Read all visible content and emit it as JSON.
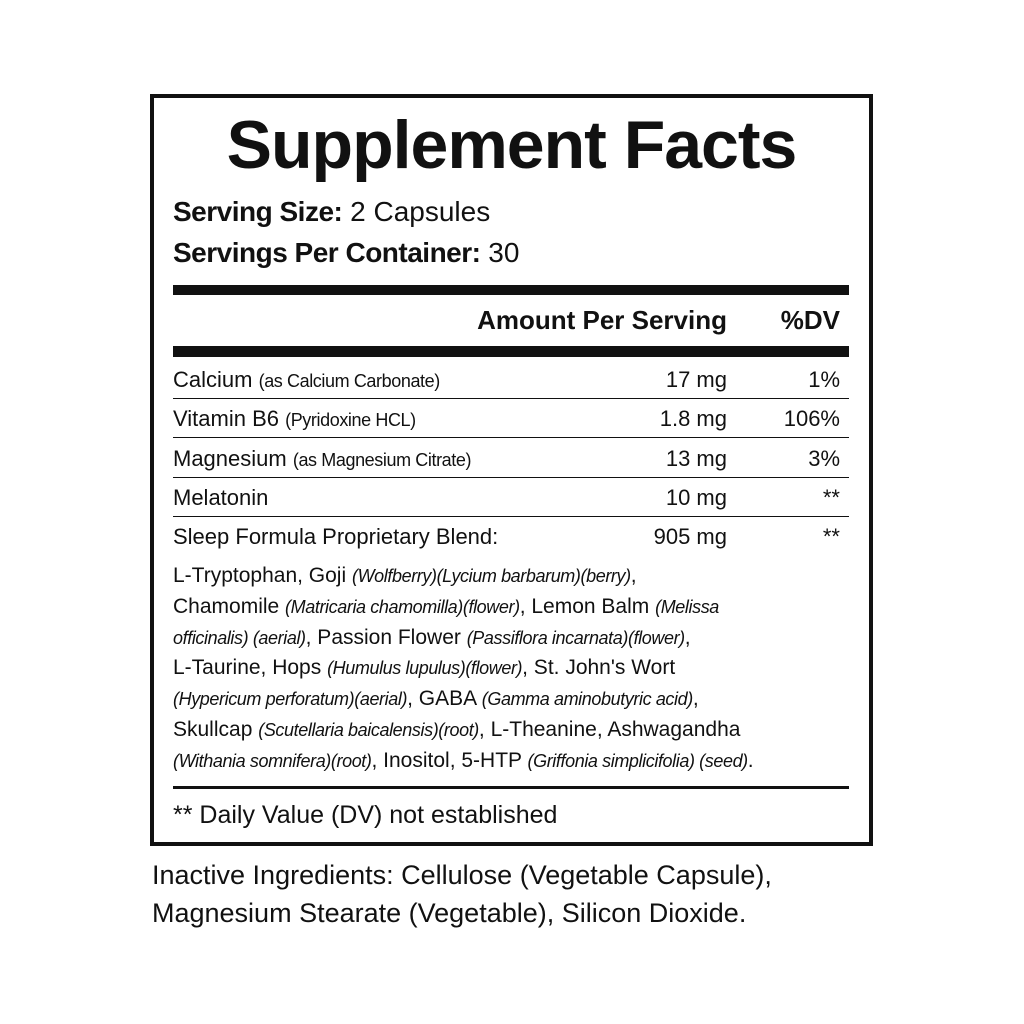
{
  "title": "Supplement Facts",
  "serving_size": {
    "label": "Serving Size:",
    "value": "2 Capsules"
  },
  "servings_per_container": {
    "label": "Servings Per Container:",
    "value": "30"
  },
  "header": {
    "amount": "Amount Per Serving",
    "dv": "%DV"
  },
  "rows": [
    {
      "name": "Calcium",
      "note": "(as Calcium Carbonate)",
      "amount": "17 mg",
      "dv": "1%"
    },
    {
      "name": "Vitamin B6",
      "note": "(Pyridoxine HCL)",
      "amount": "1.8 mg",
      "dv": "106%"
    },
    {
      "name": "Magnesium",
      "note": "(as Magnesium Citrate)",
      "amount": "13 mg",
      "dv": "3%"
    },
    {
      "name": "Melatonin",
      "amount": "10 mg",
      "dv": "**"
    }
  ],
  "blend": {
    "name": "Sleep Formula Proprietary Blend:",
    "amount": "905 mg",
    "dv": "**",
    "lines": [
      [
        {
          "text": "L-Tryptophan, Goji ",
          "italic": false
        },
        {
          "text": "(Wolfberry)(Lycium barbarum)(berry)",
          "italic": true
        },
        {
          "text": ",",
          "italic": false
        }
      ],
      [
        {
          "text": "Chamomile ",
          "italic": false
        },
        {
          "text": "(Matricaria chamomilla)(flower)",
          "italic": true
        },
        {
          "text": ", Lemon Balm ",
          "italic": false
        },
        {
          "text": "(Melissa",
          "italic": true
        }
      ],
      [
        {
          "text": "officinalis) (aerial)",
          "italic": true
        },
        {
          "text": ", Passion Flower ",
          "italic": false
        },
        {
          "text": "(Passiflora incarnata)(flower)",
          "italic": true
        },
        {
          "text": ",",
          "italic": false
        }
      ],
      [
        {
          "text": "L-Taurine, Hops ",
          "italic": false
        },
        {
          "text": "(Humulus lupulus)(flower)",
          "italic": true
        },
        {
          "text": ", St. John's Wort",
          "italic": false
        }
      ],
      [
        {
          "text": "(Hypericum perforatum)(aerial)",
          "italic": true
        },
        {
          "text": ", GABA ",
          "italic": false
        },
        {
          "text": "(Gamma aminobutyric acid)",
          "italic": true
        },
        {
          "text": ",",
          "italic": false
        }
      ],
      [
        {
          "text": "Skullcap ",
          "italic": false
        },
        {
          "text": "(Scutellaria baicalensis)(root)",
          "italic": true
        },
        {
          "text": ", L-Theanine, Ashwagandha",
          "italic": false
        }
      ],
      [
        {
          "text": "(Withania somnifera)(root)",
          "italic": true
        },
        {
          "text": ", Inositol, 5-HTP ",
          "italic": false
        },
        {
          "text": "(Griffonia simplicifolia) (seed)",
          "italic": true
        },
        {
          "text": ".",
          "italic": false
        }
      ]
    ]
  },
  "footnote": "** Daily Value (DV) not established",
  "inactive_ingredients": [
    "Inactive Ingredients: Cellulose (Vegetable Capsule),",
    "Magnesium Stearate (Vegetable), Silicon Dioxide."
  ]
}
